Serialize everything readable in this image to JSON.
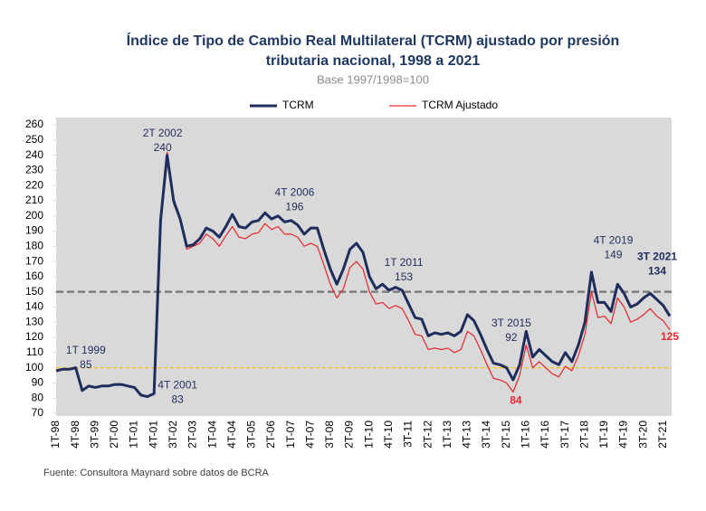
{
  "chart_data": {
    "type": "line",
    "title": "Índice de Tipo de Cambio Real Multilateral (TCRM) ajustado por presión",
    "title_line2": "tributaria nacional, 1998 a 2021",
    "subtitle": "Base 1997/1998=100",
    "source": "Fuente: Consultora Maynard sobre datos de BCRA",
    "categories": [
      "1T-98",
      null,
      null,
      "4T-98",
      null,
      null,
      "3T-99",
      null,
      null,
      "2T-00",
      null,
      null,
      "1T-01",
      null,
      null,
      "4T-01",
      null,
      null,
      "3T-02",
      null,
      null,
      "2T-03",
      null,
      null,
      "1T-04",
      null,
      null,
      "4T-04",
      null,
      null,
      "3T-05",
      null,
      null,
      "2T-06",
      null,
      null,
      "1T-07",
      null,
      null,
      "4T-07",
      null,
      null,
      "3T-08",
      null,
      null,
      "2T-09",
      null,
      null,
      "1T-10",
      null,
      null,
      "4T-10",
      null,
      null,
      "3T-11",
      null,
      null,
      "2T-12",
      null,
      null,
      "1T-13",
      null,
      null,
      "4T-13",
      null,
      null,
      "3T-14",
      null,
      null,
      "2T-15",
      null,
      null,
      "1T-16",
      null,
      null,
      "4T-16",
      null,
      null,
      "3T-17",
      null,
      null,
      "2T-18",
      null,
      null,
      "1T-19",
      null,
      null,
      "4T-19",
      null,
      null,
      "3T-20",
      null,
      null,
      "2T-21",
      null
    ],
    "series": [
      {
        "name": "TCRM",
        "color": "#1f2d5c",
        "width": 3,
        "values": [
          98,
          99,
          99,
          100,
          85,
          88,
          87,
          88,
          88,
          89,
          89,
          88,
          87,
          82,
          81,
          83,
          197,
          240,
          210,
          198,
          180,
          181,
          185,
          192,
          190,
          186,
          193,
          201,
          193,
          192,
          196,
          197,
          202,
          198,
          200,
          196,
          197,
          194,
          188,
          192,
          192,
          178,
          165,
          155,
          165,
          178,
          182,
          176,
          160,
          152,
          155,
          151,
          153,
          151,
          142,
          133,
          132,
          121,
          123,
          122,
          123,
          121,
          124,
          135,
          131,
          122,
          112,
          103,
          102,
          100,
          92,
          102,
          124,
          107,
          112,
          108,
          104,
          102,
          110,
          104,
          115,
          130,
          163,
          143,
          143,
          137,
          155,
          149,
          140,
          142,
          146,
          149,
          145,
          141,
          134
        ]
      },
      {
        "name": "TCRM Ajustado",
        "color": "#e8262b",
        "width": 1.2,
        "values": [
          98,
          99,
          99,
          100,
          85,
          88,
          87,
          88,
          88,
          89,
          89,
          88,
          87,
          82,
          81,
          83,
          195,
          242,
          208,
          197,
          178,
          180,
          182,
          188,
          185,
          180,
          187,
          193,
          186,
          185,
          188,
          189,
          195,
          191,
          193,
          188,
          188,
          186,
          180,
          182,
          180,
          168,
          155,
          146,
          152,
          166,
          170,
          165,
          150,
          142,
          143,
          139,
          141,
          139,
          131,
          122,
          121,
          112,
          113,
          112,
          113,
          110,
          112,
          124,
          121,
          112,
          102,
          93,
          92,
          90,
          84,
          95,
          115,
          100,
          104,
          100,
          96,
          94,
          101,
          98,
          108,
          122,
          150,
          133,
          134,
          129,
          146,
          140,
          130,
          132,
          135,
          139,
          134,
          131,
          125
        ]
      }
    ],
    "ylim": [
      70,
      260
    ],
    "yticks": [
      70,
      80,
      90,
      100,
      110,
      120,
      130,
      140,
      150,
      160,
      170,
      180,
      190,
      200,
      210,
      220,
      230,
      240,
      250,
      260
    ],
    "reference_lines": [
      {
        "value": 150,
        "color": "#7f7f7f"
      },
      {
        "value": 100,
        "color": "#ffc000"
      }
    ],
    "legend": "top",
    "annotations": [
      {
        "label": "1T 1999",
        "values": [
          85
        ]
      },
      {
        "label": "4T 2001",
        "values": [
          83
        ]
      },
      {
        "label": "2T 2002",
        "values": [
          240
        ]
      },
      {
        "label": "4T 2006",
        "values": [
          196
        ]
      },
      {
        "label": "1T 2011",
        "values": [
          153
        ]
      },
      {
        "label": "3T 2015",
        "values": [
          92,
          84
        ]
      },
      {
        "label": "4T 2019",
        "values": [
          149
        ]
      },
      {
        "label": "3T 2021",
        "values": [
          134,
          125
        ]
      }
    ]
  }
}
